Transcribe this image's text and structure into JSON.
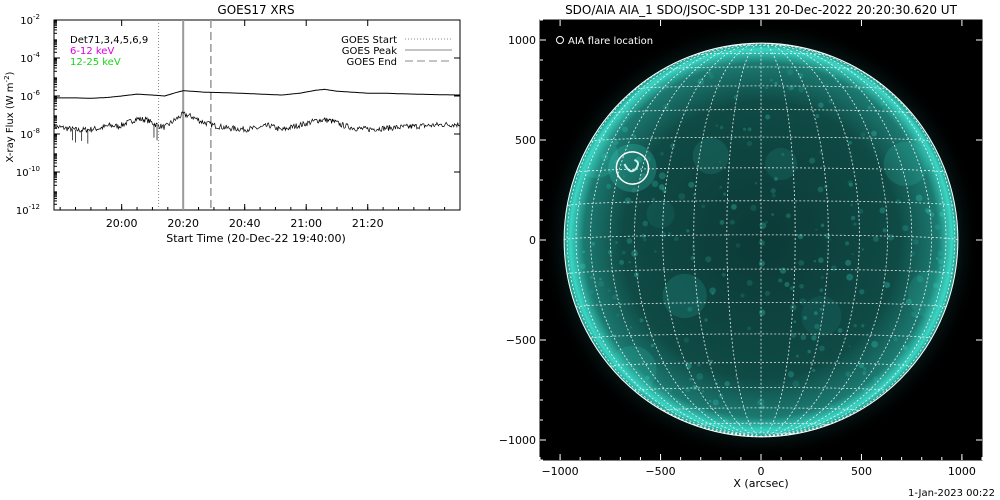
{
  "chart_data": [
    {
      "type": "line",
      "title": "GOES17 XRS",
      "xlabel": "Start Time (20-Dec-22 19:40:00)",
      "ylabel": "X-ray Flux (W m",
      "ylabel_sup": "-2",
      "ylabel_close": ")",
      "y_scale": "log",
      "ylim": [
        1e-12,
        0.01
      ],
      "xlim_minutes": [
        -22,
        110
      ],
      "x_ticks": [
        {
          "minute": 0,
          "label": "20:00"
        },
        {
          "minute": 20,
          "label": "20:20"
        },
        {
          "minute": 40,
          "label": "20:40"
        },
        {
          "minute": 60,
          "label": "21:00"
        },
        {
          "minute": 80,
          "label": "21:20"
        }
      ],
      "y_ticks": [
        {
          "base": "10",
          "exp": "-2",
          "value": 0.01
        },
        {
          "base": "10",
          "exp": "-4",
          "value": 0.0001
        },
        {
          "base": "10",
          "exp": "-6",
          "value": 1e-06
        },
        {
          "base": "10",
          "exp": "-8",
          "value": 1e-08
        },
        {
          "base": "10",
          "exp": "-10",
          "value": 1e-10
        },
        {
          "base": "10",
          "exp": "-12",
          "value": 1e-12
        }
      ],
      "channel_labels": [
        {
          "text": "Det71,3,4,5,6,9",
          "color": "#000000"
        },
        {
          "text": "6-12 keV",
          "color": "#e000e0"
        },
        {
          "text": "12-25 keV",
          "color": "#20d020"
        }
      ],
      "legend": [
        {
          "label": "GOES Start",
          "style": "dotted"
        },
        {
          "label": "GOES Peak",
          "style": "solid"
        },
        {
          "label": "GOES End",
          "style": "dashed"
        }
      ],
      "legend_placement": "top-right",
      "event_lines_minutes": {
        "start": 12,
        "peak": 20,
        "end": 29
      },
      "series": [
        {
          "channel": "long",
          "x_minutes": [
            -22,
            -15,
            -10,
            -5,
            0,
            5,
            10,
            14,
            17,
            20,
            23,
            27,
            32,
            38,
            45,
            52,
            58,
            63,
            66,
            70,
            75,
            80,
            85,
            90,
            100,
            110
          ],
          "log10_flux": [
            -6.1,
            -6.1,
            -6.12,
            -6.08,
            -6.0,
            -5.9,
            -5.95,
            -6.0,
            -5.85,
            -5.72,
            -5.75,
            -5.8,
            -5.82,
            -5.85,
            -5.9,
            -5.95,
            -5.85,
            -5.7,
            -5.65,
            -5.75,
            -5.8,
            -5.85,
            -5.85,
            -5.88,
            -5.92,
            -5.95
          ]
        },
        {
          "channel": "short",
          "x_minutes": [
            -22,
            -18,
            -14,
            -10,
            -7,
            -4,
            -1,
            2,
            5,
            8,
            11,
            14,
            17,
            20,
            23,
            26,
            30,
            35,
            40,
            44,
            48,
            52,
            56,
            60,
            63,
            66,
            69,
            72,
            76,
            80,
            85,
            90,
            95,
            100,
            105,
            110
          ],
          "log10_flux": [
            -7.6,
            -7.7,
            -7.8,
            -7.75,
            -7.7,
            -7.55,
            -7.6,
            -7.4,
            -7.2,
            -7.25,
            -7.5,
            -7.65,
            -7.3,
            -6.95,
            -7.1,
            -7.35,
            -7.55,
            -7.7,
            -7.75,
            -7.7,
            -7.55,
            -7.8,
            -7.6,
            -7.45,
            -7.3,
            -7.25,
            -7.35,
            -7.55,
            -7.7,
            -7.75,
            -7.7,
            -7.65,
            -7.6,
            -7.55,
            -7.5,
            -7.5
          ]
        }
      ]
    },
    {
      "type": "heatmap",
      "title": "SDO/AIA AIA_1 SDO/JSOC-SDP 131 20-Dec-2022 20:20:30.620 UT",
      "xlabel": "X (arcsec)",
      "ylabel": "",
      "xlim": [
        -1100,
        1100
      ],
      "ylim": [
        -1100,
        1100
      ],
      "x_ticks": [
        -1000,
        -500,
        0,
        500,
        1000
      ],
      "y_ticks": [
        -1000,
        -500,
        0,
        500,
        1000
      ],
      "legend": [
        {
          "label": "AIA flare location",
          "marker": "circle"
        }
      ],
      "legend_placement": "top-left",
      "solar_radius_arcsec": 980,
      "flare_location_arcsec": {
        "x": -640,
        "y": 360,
        "radius": 80
      },
      "colors": {
        "background": "#000000",
        "disk": "#0f4a45",
        "limb": "#3ad6c4",
        "grid": "#ffffff"
      }
    }
  ],
  "footer": {
    "date": "1-Jan-2023 00:22"
  }
}
